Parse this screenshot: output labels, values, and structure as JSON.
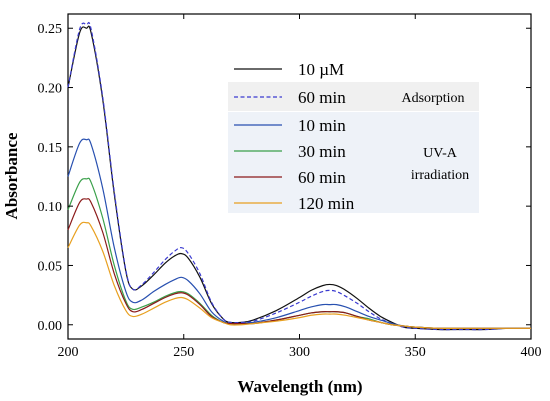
{
  "chart_data": {
    "type": "line",
    "xlabel": "Wavelength (nm)",
    "ylabel": "Absorbance",
    "xlim": [
      200,
      400
    ],
    "ylim": [
      -0.012,
      0.262
    ],
    "xticks": [
      200,
      250,
      300,
      350,
      400
    ],
    "xtick_labels": [
      "200",
      "250",
      "300",
      "350",
      "400"
    ],
    "yticks": [
      0.0,
      0.05,
      0.1,
      0.15,
      0.2,
      0.25
    ],
    "ytick_labels": [
      "0.00",
      "0.05",
      "0.10",
      "0.15",
      "0.20",
      "0.25"
    ],
    "grid": false,
    "legend_position": "top-right",
    "groups": [
      {
        "label": "Adsorption",
        "series_indices": [
          0,
          1
        ],
        "background": "#f0f0f0"
      },
      {
        "label": "UV-A irradiation",
        "label_lines": [
          "UV-A",
          "irradiation"
        ],
        "series_indices": [
          2,
          3,
          4,
          5
        ],
        "background": "#eef2f8"
      }
    ],
    "x": [
      200,
      205,
      208,
      210,
      215,
      220,
      225,
      228,
      232,
      237,
      242,
      246,
      249,
      252,
      257,
      262,
      267,
      270,
      275,
      280,
      290,
      300,
      305,
      310,
      313,
      316,
      320,
      325,
      330,
      335,
      340,
      345,
      350,
      360,
      370,
      380,
      390,
      400
    ],
    "series": [
      {
        "name": "10 µM",
        "color": "#111111",
        "dash": "solid",
        "values": [
          0.2,
          0.246,
          0.25,
          0.246,
          0.19,
          0.11,
          0.045,
          0.03,
          0.033,
          0.042,
          0.052,
          0.058,
          0.06,
          0.056,
          0.04,
          0.018,
          0.005,
          0.002,
          0.002,
          0.004,
          0.012,
          0.023,
          0.029,
          0.033,
          0.034,
          0.033,
          0.029,
          0.022,
          0.014,
          0.007,
          0.002,
          -0.002,
          -0.003,
          -0.004,
          -0.004,
          -0.004,
          -0.003,
          -0.003
        ]
      },
      {
        "name": "60 min",
        "color": "#3a3ad0",
        "dash": "dashed",
        "values": [
          0.2,
          0.249,
          0.253,
          0.249,
          0.192,
          0.112,
          0.046,
          0.03,
          0.034,
          0.044,
          0.055,
          0.062,
          0.065,
          0.06,
          0.043,
          0.019,
          0.005,
          0.002,
          0.002,
          0.003,
          0.01,
          0.019,
          0.024,
          0.028,
          0.029,
          0.028,
          0.024,
          0.018,
          0.011,
          0.005,
          0.001,
          -0.002,
          -0.003,
          -0.004,
          -0.004,
          -0.004,
          -0.003,
          -0.003
        ]
      },
      {
        "name": "10 min",
        "color": "#2850b0",
        "dash": "solid",
        "values": [
          0.125,
          0.153,
          0.156,
          0.152,
          0.115,
          0.065,
          0.028,
          0.019,
          0.021,
          0.028,
          0.034,
          0.038,
          0.04,
          0.037,
          0.026,
          0.011,
          0.003,
          0.001,
          0.001,
          0.002,
          0.006,
          0.012,
          0.015,
          0.017,
          0.017,
          0.017,
          0.015,
          0.011,
          0.007,
          0.004,
          0.001,
          -0.001,
          -0.002,
          -0.003,
          -0.003,
          -0.003,
          -0.003,
          -0.003
        ]
      },
      {
        "name": "30 min",
        "color": "#3aa04a",
        "dash": "solid",
        "values": [
          0.097,
          0.12,
          0.123,
          0.12,
          0.09,
          0.05,
          0.02,
          0.013,
          0.015,
          0.019,
          0.024,
          0.027,
          0.028,
          0.026,
          0.018,
          0.008,
          0.002,
          0.001,
          0.001,
          0.001,
          0.004,
          0.008,
          0.01,
          0.011,
          0.011,
          0.011,
          0.01,
          0.007,
          0.005,
          0.002,
          0.0,
          -0.001,
          -0.002,
          -0.003,
          -0.003,
          -0.003,
          -0.003,
          -0.003
        ]
      },
      {
        "name": "60 min",
        "color": "#8b1a1a",
        "dash": "solid",
        "values": [
          0.08,
          0.103,
          0.106,
          0.103,
          0.078,
          0.043,
          0.018,
          0.011,
          0.013,
          0.018,
          0.023,
          0.026,
          0.027,
          0.025,
          0.017,
          0.007,
          0.002,
          0.001,
          0.001,
          0.001,
          0.004,
          0.008,
          0.01,
          0.011,
          0.011,
          0.011,
          0.01,
          0.007,
          0.004,
          0.002,
          0.0,
          -0.001,
          -0.002,
          -0.003,
          -0.003,
          -0.003,
          -0.003,
          -0.003
        ]
      },
      {
        "name": "120 min",
        "color": "#e8a020",
        "dash": "solid",
        "values": [
          0.065,
          0.084,
          0.086,
          0.083,
          0.062,
          0.033,
          0.012,
          0.007,
          0.009,
          0.014,
          0.019,
          0.022,
          0.023,
          0.021,
          0.014,
          0.006,
          0.002,
          0.0,
          0.0,
          0.001,
          0.003,
          0.006,
          0.008,
          0.009,
          0.009,
          0.009,
          0.008,
          0.006,
          0.004,
          0.002,
          0.0,
          -0.001,
          -0.002,
          -0.003,
          -0.003,
          -0.003,
          -0.003,
          -0.003
        ]
      }
    ]
  }
}
